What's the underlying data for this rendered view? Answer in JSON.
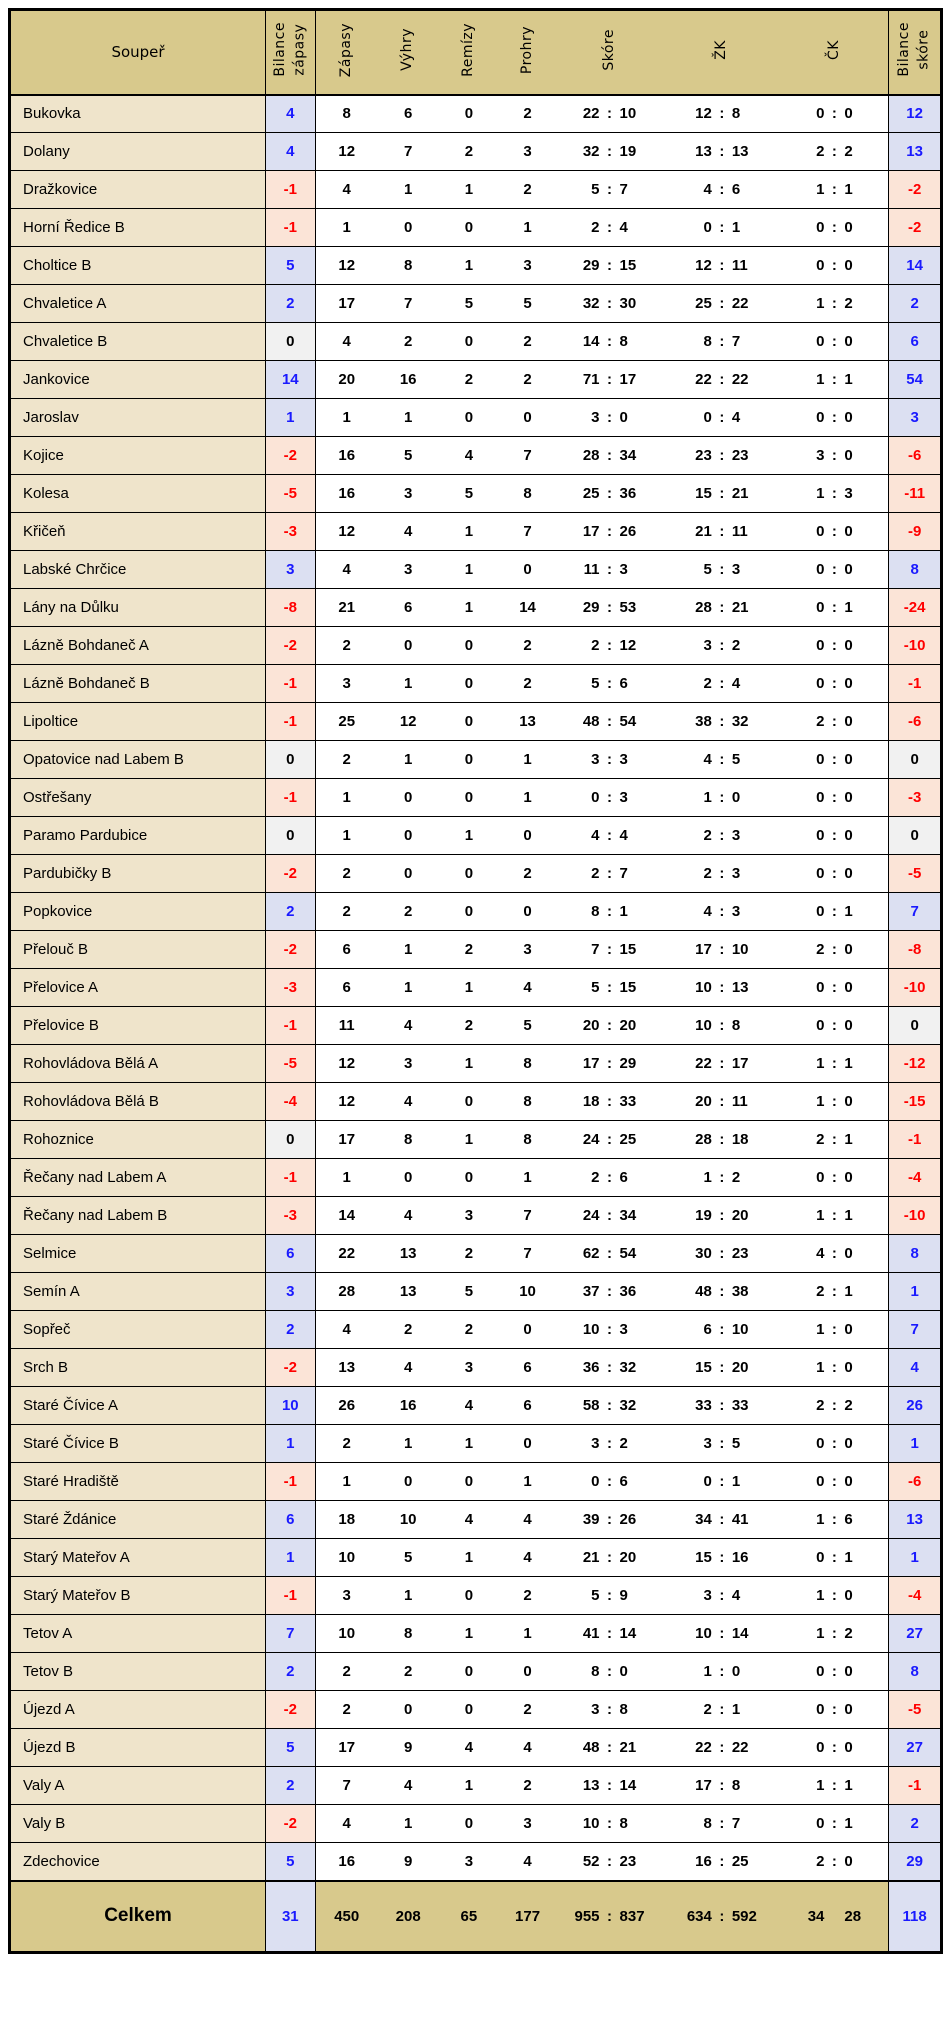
{
  "table": {
    "headers": {
      "soupe": "Soupeř",
      "bilance_zapasy": "Bilance\nzápasy",
      "zapasy": "Zápasy",
      "vyhry": "Výhry",
      "remizy": "Remízy",
      "prohry": "Prohry",
      "skore": "Skóre",
      "zk": "ŽK",
      "ck": "ČK",
      "bilance_skore": "Bilance\nskóre"
    },
    "columns_order": [
      "team",
      "balance_matches",
      "matches",
      "wins",
      "draws",
      "losses",
      "score",
      "yellow_cards",
      "red_cards",
      "balance_score"
    ],
    "rows": [
      [
        "Bukovka",
        4,
        8,
        6,
        0,
        2,
        "22 : 10",
        "12 : 8",
        "0 : 0",
        12
      ],
      [
        "Dolany",
        4,
        12,
        7,
        2,
        3,
        "32 : 19",
        "13 : 13",
        "2 : 2",
        13
      ],
      [
        "Dražkovice",
        -1,
        4,
        1,
        1,
        2,
        "5 : 7",
        "4 : 6",
        "1 : 1",
        -2
      ],
      [
        "Horní Ředice B",
        -1,
        1,
        0,
        0,
        1,
        "2 : 4",
        "0 : 1",
        "0 : 0",
        -2
      ],
      [
        "Choltice B",
        5,
        12,
        8,
        1,
        3,
        "29 : 15",
        "12 : 11",
        "0 : 0",
        14
      ],
      [
        "Chvaletice A",
        2,
        17,
        7,
        5,
        5,
        "32 : 30",
        "25 : 22",
        "1 : 2",
        2
      ],
      [
        "Chvaletice B",
        0,
        4,
        2,
        0,
        2,
        "14 : 8",
        "8 : 7",
        "0 : 0",
        6
      ],
      [
        "Jankovice",
        14,
        20,
        16,
        2,
        2,
        "71 : 17",
        "22 : 22",
        "1 : 1",
        54
      ],
      [
        "Jaroslav",
        1,
        1,
        1,
        0,
        0,
        "3 : 0",
        "0 : 4",
        "0 : 0",
        3
      ],
      [
        "Kojice",
        -2,
        16,
        5,
        4,
        7,
        "28 : 34",
        "23 : 23",
        "3 : 0",
        -6
      ],
      [
        "Kolesa",
        -5,
        16,
        3,
        5,
        8,
        "25 : 36",
        "15 : 21",
        "1 : 3",
        -11
      ],
      [
        "Křičeň",
        -3,
        12,
        4,
        1,
        7,
        "17 : 26",
        "21 : 11",
        "0 : 0",
        -9
      ],
      [
        "Labské Chrčice",
        3,
        4,
        3,
        1,
        0,
        "11 : 3",
        "5 : 3",
        "0 : 0",
        8
      ],
      [
        "Lány na Důlku",
        -8,
        21,
        6,
        1,
        14,
        "29 : 53",
        "28 : 21",
        "0 : 1",
        -24
      ],
      [
        "Lázně Bohdaneč A",
        -2,
        2,
        0,
        0,
        2,
        "2 : 12",
        "3 : 2",
        "0 : 0",
        -10
      ],
      [
        "Lázně Bohdaneč B",
        -1,
        3,
        1,
        0,
        2,
        "5 : 6",
        "2 : 4",
        "0 : 0",
        -1
      ],
      [
        "Lipoltice",
        -1,
        25,
        12,
        0,
        13,
        "48 : 54",
        "38 : 32",
        "2 : 0",
        -6
      ],
      [
        "Opatovice nad Labem B",
        0,
        2,
        1,
        0,
        1,
        "3 : 3",
        "4 : 5",
        "0 : 0",
        0
      ],
      [
        "Ostřešany",
        -1,
        1,
        0,
        0,
        1,
        "0 : 3",
        "1 : 0",
        "0 : 0",
        -3
      ],
      [
        "Paramo Pardubice",
        0,
        1,
        0,
        1,
        0,
        "4 : 4",
        "2 : 3",
        "0 : 0",
        0
      ],
      [
        "Pardubičky B",
        -2,
        2,
        0,
        0,
        2,
        "2 : 7",
        "2 : 3",
        "0 : 0",
        -5
      ],
      [
        "Popkovice",
        2,
        2,
        2,
        0,
        0,
        "8 : 1",
        "4 : 3",
        "0 : 1",
        7
      ],
      [
        "Přelouč B",
        -2,
        6,
        1,
        2,
        3,
        "7 : 15",
        "17 : 10",
        "2 : 0",
        -8
      ],
      [
        "Přelovice A",
        -3,
        6,
        1,
        1,
        4,
        "5 : 15",
        "10 : 13",
        "0 : 0",
        -10
      ],
      [
        "Přelovice B",
        -1,
        11,
        4,
        2,
        5,
        "20 : 20",
        "10 : 8",
        "0 : 0",
        0
      ],
      [
        "Rohovládova Bělá A",
        -5,
        12,
        3,
        1,
        8,
        "17 : 29",
        "22 : 17",
        "1 : 1",
        -12
      ],
      [
        "Rohovládova Bělá B",
        -4,
        12,
        4,
        0,
        8,
        "18 : 33",
        "20 : 11",
        "1 : 0",
        -15
      ],
      [
        "Rohoznice",
        0,
        17,
        8,
        1,
        8,
        "24 : 25",
        "28 : 18",
        "2 : 1",
        -1
      ],
      [
        "Řečany nad Labem A",
        -1,
        1,
        0,
        0,
        1,
        "2 : 6",
        "1 : 2",
        "0 : 0",
        -4
      ],
      [
        "Řečany nad Labem B",
        -3,
        14,
        4,
        3,
        7,
        "24 : 34",
        "19 : 20",
        "1 : 1",
        -10
      ],
      [
        "Selmice",
        6,
        22,
        13,
        2,
        7,
        "62 : 54",
        "30 : 23",
        "4 : 0",
        8
      ],
      [
        "Semín A",
        3,
        28,
        13,
        5,
        10,
        "37 : 36",
        "48 : 38",
        "2 : 1",
        1
      ],
      [
        "Sopřeč",
        2,
        4,
        2,
        2,
        0,
        "10 : 3",
        "6 : 10",
        "1 : 0",
        7
      ],
      [
        "Srch B",
        -2,
        13,
        4,
        3,
        6,
        "36 : 32",
        "15 : 20",
        "1 : 0",
        4
      ],
      [
        "Staré Čívice A",
        10,
        26,
        16,
        4,
        6,
        "58 : 32",
        "33 : 33",
        "2 : 2",
        26
      ],
      [
        "Staré Čívice B",
        1,
        2,
        1,
        1,
        0,
        "3 : 2",
        "3 : 5",
        "0 : 0",
        1
      ],
      [
        "Staré Hradiště",
        -1,
        1,
        0,
        0,
        1,
        "0 : 6",
        "0 : 1",
        "0 : 0",
        -6
      ],
      [
        "Staré Ždánice",
        6,
        18,
        10,
        4,
        4,
        "39 : 26",
        "34 : 41",
        "1 : 6",
        13
      ],
      [
        "Starý Mateřov A",
        1,
        10,
        5,
        1,
        4,
        "21 : 20",
        "15 : 16",
        "0 : 1",
        1
      ],
      [
        "Starý Mateřov B",
        -1,
        3,
        1,
        0,
        2,
        "5 : 9",
        "3 : 4",
        "1 : 0",
        -4
      ],
      [
        "Tetov A",
        7,
        10,
        8,
        1,
        1,
        "41 : 14",
        "10 : 14",
        "1 : 2",
        27
      ],
      [
        "Tetov B",
        2,
        2,
        2,
        0,
        0,
        "8 : 0",
        "1 : 0",
        "0 : 0",
        8
      ],
      [
        "Újezd A",
        -2,
        2,
        0,
        0,
        2,
        "3 : 8",
        "2 : 1",
        "0 : 0",
        -5
      ],
      [
        "Újezd B",
        5,
        17,
        9,
        4,
        4,
        "48 : 21",
        "22 : 22",
        "0 : 0",
        27
      ],
      [
        "Valy A",
        2,
        7,
        4,
        1,
        2,
        "13 : 14",
        "17 : 8",
        "1 : 1",
        -1
      ],
      [
        "Valy B",
        -2,
        4,
        1,
        0,
        3,
        "10 : 8",
        "8 : 7",
        "0 : 1",
        2
      ],
      [
        "Zdechovice",
        5,
        16,
        9,
        3,
        4,
        "52 : 23",
        "16 : 25",
        "2 : 0",
        29
      ]
    ],
    "total_row": {
      "label": "Celkem",
      "balance_matches": 31,
      "matches": 450,
      "wins": 208,
      "draws": 65,
      "losses": 177,
      "score": "955 : 837",
      "yellow_cards": "634 : 592",
      "red_cards_left": "34",
      "red_cards_right": "28",
      "balance_score": 118
    },
    "colors": {
      "header_bg": "#d8c98c",
      "team_cell_bg": "#efe4cb",
      "positive_bg": "#dce0f2",
      "positive_text": "#1a1aff",
      "negative_bg": "#fbe4d7",
      "negative_text": "#ff0000",
      "zero_bg": "#f1f1f1",
      "border": "#000000"
    }
  }
}
